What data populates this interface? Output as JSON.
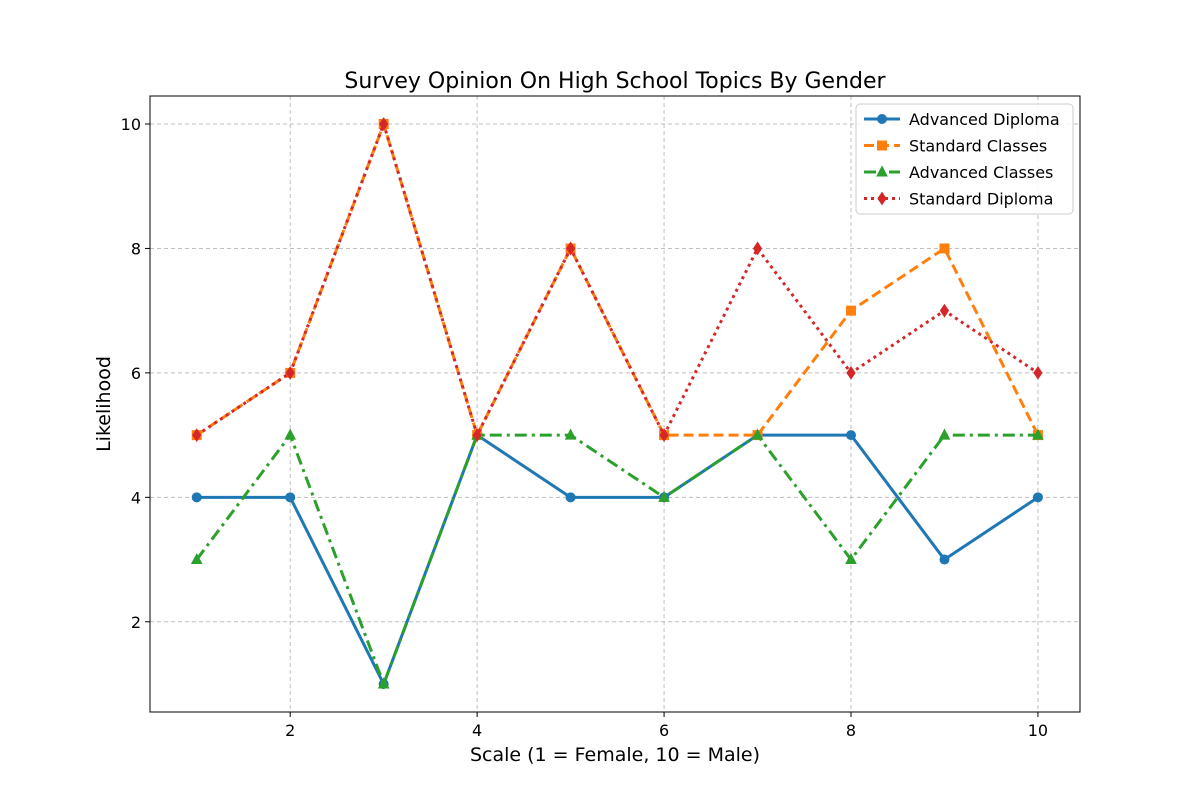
{
  "chart_data": {
    "type": "line",
    "title": "Survey Opinion On High School Topics By Gender",
    "xlabel": "Scale (1 = Female, 10 = Male)",
    "ylabel": "Likelihood",
    "x": [
      1,
      2,
      3,
      4,
      5,
      6,
      7,
      8,
      9,
      10
    ],
    "xlim": [
      0.5,
      10.45
    ],
    "ylim": [
      0.55,
      10.45
    ],
    "xticks": [
      "2",
      "4",
      "6",
      "8",
      "10"
    ],
    "yticks": [
      "2",
      "4",
      "6",
      "8",
      "10"
    ],
    "grid": true,
    "legend_position": "top-right",
    "series": [
      {
        "name": "Advanced Diploma",
        "values": [
          4,
          4,
          1,
          5,
          4,
          4,
          5,
          5,
          3,
          4
        ],
        "color": "#1f77b4",
        "linestyle": "solid",
        "marker": "circle"
      },
      {
        "name": "Standard Classes",
        "values": [
          5,
          6,
          10,
          5,
          8,
          5,
          5,
          7,
          8,
          5
        ],
        "color": "#ff7f0e",
        "linestyle": "dashed",
        "marker": "square"
      },
      {
        "name": "Advanced Classes",
        "values": [
          3,
          5,
          1,
          5,
          5,
          4,
          5,
          3,
          5,
          5
        ],
        "color": "#2ca02c",
        "linestyle": "dashdot",
        "marker": "triangle"
      },
      {
        "name": "Standard Diploma",
        "values": [
          5,
          6,
          10,
          5,
          8,
          5,
          8,
          6,
          7,
          6
        ],
        "color": "#d62728",
        "linestyle": "dotted",
        "marker": "diamond"
      }
    ]
  }
}
